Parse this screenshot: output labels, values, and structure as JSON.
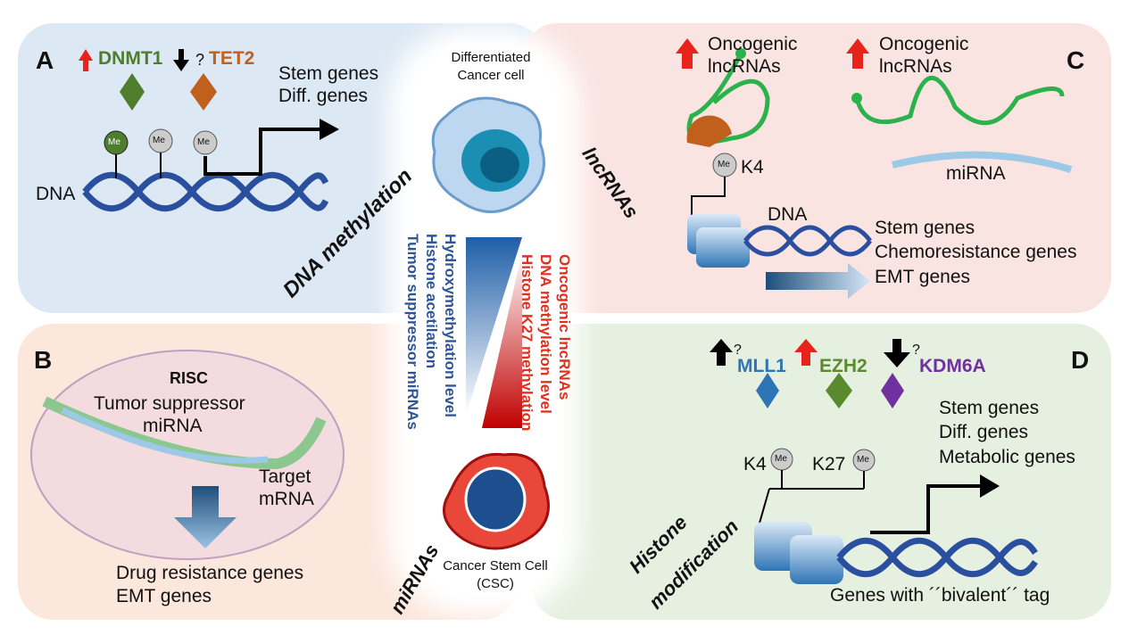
{
  "colors": {
    "panel_a": "#dce8f4",
    "panel_b": "#fce7dd",
    "panel_c": "#fae4e1",
    "panel_d": "#e6f0e0",
    "up_arrow": "#e8231b",
    "blue_text": "#2f5597",
    "red_text": "#e03020",
    "dnmt1": "#4e7d2c",
    "tet2": "#c0601c",
    "mll1": "#2e75b6",
    "ezh2": "#5a8a2e",
    "kdm6a": "#7030a0"
  },
  "center": {
    "top_cell": "Differentiated\nCancer cell",
    "bottom_cell": "Cancer Stem Cell\n(CSC)",
    "blue_labels": [
      "Hydroxymethylation level",
      "Histone acetilation",
      "Tumor suppressor miRNAs"
    ],
    "red_labels": [
      "Oncogenic lncRNAs",
      "DNA methylation level",
      "Histone K27 methylation"
    ]
  },
  "panel_a": {
    "letter": "A",
    "enzyme1": "DNMT1",
    "question": "?",
    "enzyme2": "TET2",
    "targets": [
      "Stem genes",
      "Diff. genes"
    ],
    "dna": "DNA",
    "me": "Me",
    "title": "DNA methylation"
  },
  "panel_b": {
    "letter": "B",
    "risc": "RISC",
    "mirna": [
      "Tumor suppressor",
      "miRNA"
    ],
    "target": [
      "Target",
      "mRNA"
    ],
    "genes": [
      "Drug resistance genes",
      "EMT genes"
    ],
    "title": "miRNAs"
  },
  "panel_c": {
    "letter": "C",
    "onco1": [
      "Oncogenic",
      "lncRNAs"
    ],
    "onco2": [
      "Oncogenic",
      "lncRNAs"
    ],
    "me": "Me",
    "k4": "K4",
    "dna": "DNA",
    "mirna": "miRNA",
    "genes": [
      "Stem genes",
      "Chemoresistance genes",
      "EMT genes"
    ],
    "title": "lncRNAs"
  },
  "panel_d": {
    "letter": "D",
    "enzyme1": "MLL1",
    "enzyme2": "EZH2",
    "enzyme3": "KDM6A",
    "q": "?",
    "k4": "K4",
    "k27": "K27",
    "me": "Me",
    "genes": [
      "Stem genes",
      "Diff. genes",
      "Metabolic genes"
    ],
    "bivalent": "Genes with ´´bivalent´´ tag",
    "title": [
      "Histone",
      "modification"
    ]
  }
}
